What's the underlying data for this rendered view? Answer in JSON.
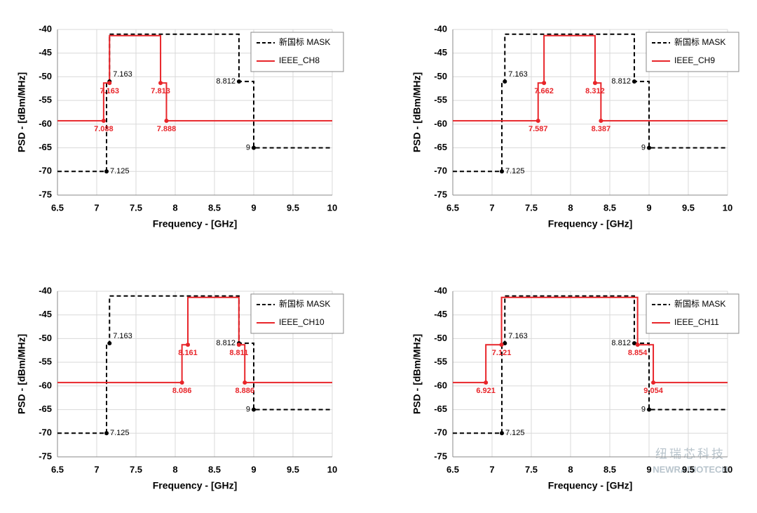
{
  "chart_data": [
    {
      "type": "line",
      "xlabel": "Frequency - [GHz]",
      "ylabel": "PSD - [dBm/MHz]",
      "xlim": [
        6.5,
        10
      ],
      "xticks": [
        6.5,
        7,
        7.5,
        8,
        8.5,
        9,
        9.5,
        10
      ],
      "ylim": [
        -75,
        -40
      ],
      "yticks": [
        -40,
        -45,
        -50,
        -55,
        -60,
        -65,
        -70,
        -75
      ],
      "grid": true,
      "legend": "upper right",
      "series": [
        {
          "name": "新国标 MASK",
          "color": "#000000",
          "linestyle": "dashed",
          "x": [
            6.5,
            7.125,
            7.125,
            7.163,
            7.163,
            8.812,
            8.812,
            9,
            9,
            10
          ],
          "values": [
            -70,
            -70,
            -51,
            -51,
            -41,
            -41,
            -51,
            -51,
            -65,
            -65
          ]
        },
        {
          "name": "IEEE_CH8",
          "color": "#e8252a",
          "linestyle": "solid",
          "x": [
            6.5,
            7.088,
            7.088,
            7.163,
            7.163,
            7.813,
            7.813,
            7.888,
            7.888,
            10
          ],
          "values": [
            -59.3,
            -59.3,
            -51.3,
            -51.3,
            -41.3,
            -41.3,
            -51.3,
            -51.3,
            -59.3,
            -59.3
          ]
        }
      ],
      "annotations": [
        {
          "x": 7.125,
          "y": -70,
          "color": "#000000"
        },
        {
          "x": 7.163,
          "y": -51,
          "color": "#000000"
        },
        {
          "x": 8.812,
          "y": -51,
          "color": "#000000"
        },
        {
          "x": 9,
          "y": -65,
          "color": "#000000"
        },
        {
          "x": 7.088,
          "y": -59.3,
          "color": "#e8252a"
        },
        {
          "x": 7.163,
          "y": -51.3,
          "color": "#e8252a"
        },
        {
          "x": 7.813,
          "y": -51.3,
          "color": "#e8252a"
        },
        {
          "x": 7.888,
          "y": -59.3,
          "color": "#e8252a"
        }
      ]
    },
    {
      "type": "line",
      "xlabel": "Frequency - [GHz]",
      "ylabel": "PSD - [dBm/MHz]",
      "xlim": [
        6.5,
        10
      ],
      "xticks": [
        6.5,
        7,
        7.5,
        8,
        8.5,
        9,
        9.5,
        10
      ],
      "ylim": [
        -75,
        -40
      ],
      "yticks": [
        -40,
        -45,
        -50,
        -55,
        -60,
        -65,
        -70,
        -75
      ],
      "grid": true,
      "legend": "upper right",
      "series": [
        {
          "name": "新国标 MASK",
          "color": "#000000",
          "linestyle": "dashed",
          "x": [
            6.5,
            7.125,
            7.125,
            7.163,
            7.163,
            8.812,
            8.812,
            9,
            9,
            10
          ],
          "values": [
            -70,
            -70,
            -51,
            -51,
            -41,
            -41,
            -51,
            -51,
            -65,
            -65
          ]
        },
        {
          "name": "IEEE_CH9",
          "color": "#e8252a",
          "linestyle": "solid",
          "x": [
            6.5,
            7.587,
            7.587,
            7.662,
            7.662,
            8.312,
            8.312,
            8.387,
            8.387,
            10
          ],
          "values": [
            -59.3,
            -59.3,
            -51.3,
            -51.3,
            -41.3,
            -41.3,
            -51.3,
            -51.3,
            -59.3,
            -59.3
          ]
        }
      ],
      "annotations": [
        {
          "x": 7.125,
          "y": -70,
          "color": "#000000"
        },
        {
          "x": 7.163,
          "y": -51,
          "color": "#000000"
        },
        {
          "x": 8.812,
          "y": -51,
          "color": "#000000"
        },
        {
          "x": 9,
          "y": -65,
          "color": "#000000"
        },
        {
          "x": 7.587,
          "y": -59.3,
          "color": "#e8252a"
        },
        {
          "x": 7.662,
          "y": -51.3,
          "color": "#e8252a"
        },
        {
          "x": 8.312,
          "y": -51.3,
          "color": "#e8252a"
        },
        {
          "x": 8.387,
          "y": -59.3,
          "color": "#e8252a"
        }
      ]
    },
    {
      "type": "line",
      "xlabel": "Frequency - [GHz]",
      "ylabel": "PSD - [dBm/MHz]",
      "xlim": [
        6.5,
        10
      ],
      "xticks": [
        6.5,
        7,
        7.5,
        8,
        8.5,
        9,
        9.5,
        10
      ],
      "ylim": [
        -75,
        -40
      ],
      "yticks": [
        -40,
        -45,
        -50,
        -55,
        -60,
        -65,
        -70,
        -75
      ],
      "grid": true,
      "legend": "upper right",
      "series": [
        {
          "name": "新国标 MASK",
          "color": "#000000",
          "linestyle": "dashed",
          "x": [
            6.5,
            7.125,
            7.125,
            7.163,
            7.163,
            8.812,
            8.812,
            9,
            9,
            10
          ],
          "values": [
            -70,
            -70,
            -51,
            -51,
            -41,
            -41,
            -51,
            -51,
            -65,
            -65
          ]
        },
        {
          "name": "IEEE_CH10",
          "color": "#e8252a",
          "linestyle": "solid",
          "x": [
            6.5,
            8.086,
            8.086,
            8.161,
            8.161,
            8.811,
            8.811,
            8.886,
            8.886,
            10
          ],
          "values": [
            -59.3,
            -59.3,
            -51.3,
            -51.3,
            -41.3,
            -41.3,
            -51.3,
            -51.3,
            -59.3,
            -59.3
          ]
        }
      ],
      "annotations": [
        {
          "x": 7.125,
          "y": -70,
          "color": "#000000"
        },
        {
          "x": 7.163,
          "y": -51,
          "color": "#000000"
        },
        {
          "x": 8.812,
          "y": -51,
          "color": "#000000"
        },
        {
          "x": 9,
          "y": -65,
          "color": "#000000"
        },
        {
          "x": 8.086,
          "y": -59.3,
          "color": "#e8252a"
        },
        {
          "x": 8.161,
          "y": -51.3,
          "color": "#e8252a"
        },
        {
          "x": 8.811,
          "y": -51.3,
          "color": "#e8252a"
        },
        {
          "x": 8.886,
          "y": -59.3,
          "color": "#e8252a"
        }
      ]
    },
    {
      "type": "line",
      "xlabel": "Frequency - [GHz]",
      "ylabel": "PSD - [dBm/MHz]",
      "xlim": [
        6.5,
        10
      ],
      "xticks": [
        6.5,
        7,
        7.5,
        8,
        8.5,
        9,
        9.5,
        10
      ],
      "ylim": [
        -75,
        -40
      ],
      "yticks": [
        -40,
        -45,
        -50,
        -55,
        -60,
        -65,
        -70,
        -75
      ],
      "grid": true,
      "legend": "upper right",
      "series": [
        {
          "name": "新国标 MASK",
          "color": "#000000",
          "linestyle": "dashed",
          "x": [
            6.5,
            7.125,
            7.125,
            7.163,
            7.163,
            8.812,
            8.812,
            9,
            9,
            10
          ],
          "values": [
            -70,
            -70,
            -51,
            -51,
            -41,
            -41,
            -51,
            -51,
            -65,
            -65
          ]
        },
        {
          "name": "IEEE_CH11",
          "color": "#e8252a",
          "linestyle": "solid",
          "x": [
            6.5,
            6.921,
            6.921,
            7.121,
            7.121,
            8.854,
            8.854,
            9.054,
            9.054,
            10
          ],
          "values": [
            -59.3,
            -59.3,
            -51.3,
            -51.3,
            -41.3,
            -41.3,
            -51.3,
            -51.3,
            -59.3,
            -59.3
          ]
        }
      ],
      "annotations": [
        {
          "x": 7.125,
          "y": -70,
          "color": "#000000"
        },
        {
          "x": 7.163,
          "y": -51,
          "color": "#000000"
        },
        {
          "x": 8.812,
          "y": -51,
          "color": "#000000"
        },
        {
          "x": 9,
          "y": -65,
          "color": "#000000"
        },
        {
          "x": 6.921,
          "y": -59.3,
          "color": "#e8252a"
        },
        {
          "x": 7.121,
          "y": -51.3,
          "color": "#e8252a"
        },
        {
          "x": 8.854,
          "y": -51.3,
          "color": "#e8252a"
        },
        {
          "x": 9.054,
          "y": -59.3,
          "color": "#e8252a"
        }
      ]
    }
  ],
  "watermark": {
    "text": "纽瑞芯科技",
    "subtext": "NEWRADIOTECH"
  }
}
